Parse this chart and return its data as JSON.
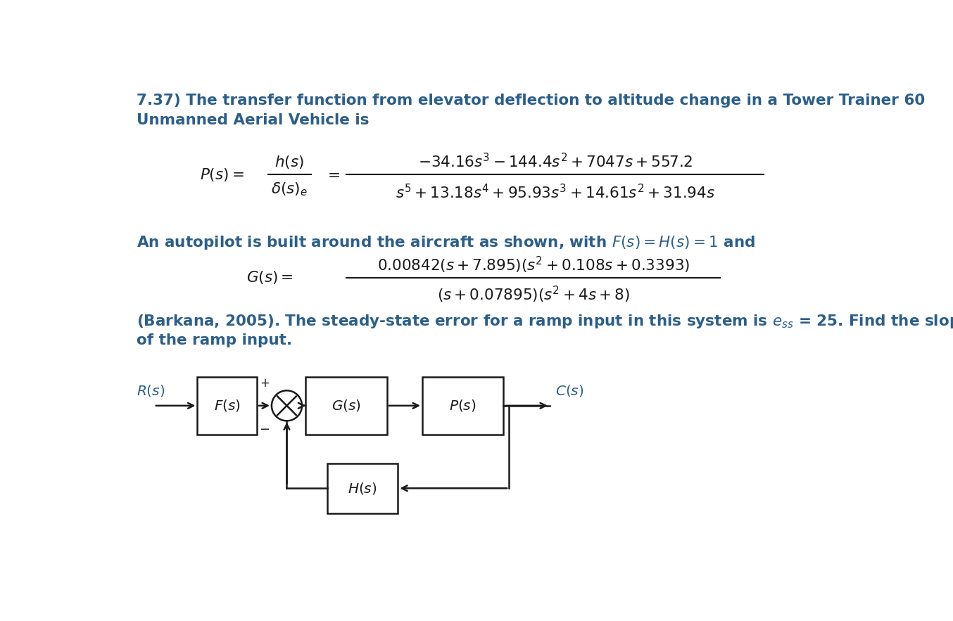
{
  "title_line1": "7.37) The transfer function from elevator deflection to altitude change in a Tower Trainer 60",
  "title_line2": "Unmanned Aerial Vehicle is",
  "text_color_blue": "#2c5f8a",
  "text_color_black": "#1a1a1a",
  "bg_color": "#ffffff",
  "fs_main": 15.5,
  "fs_math": 15.5,
  "fs_diagram": 14.5
}
